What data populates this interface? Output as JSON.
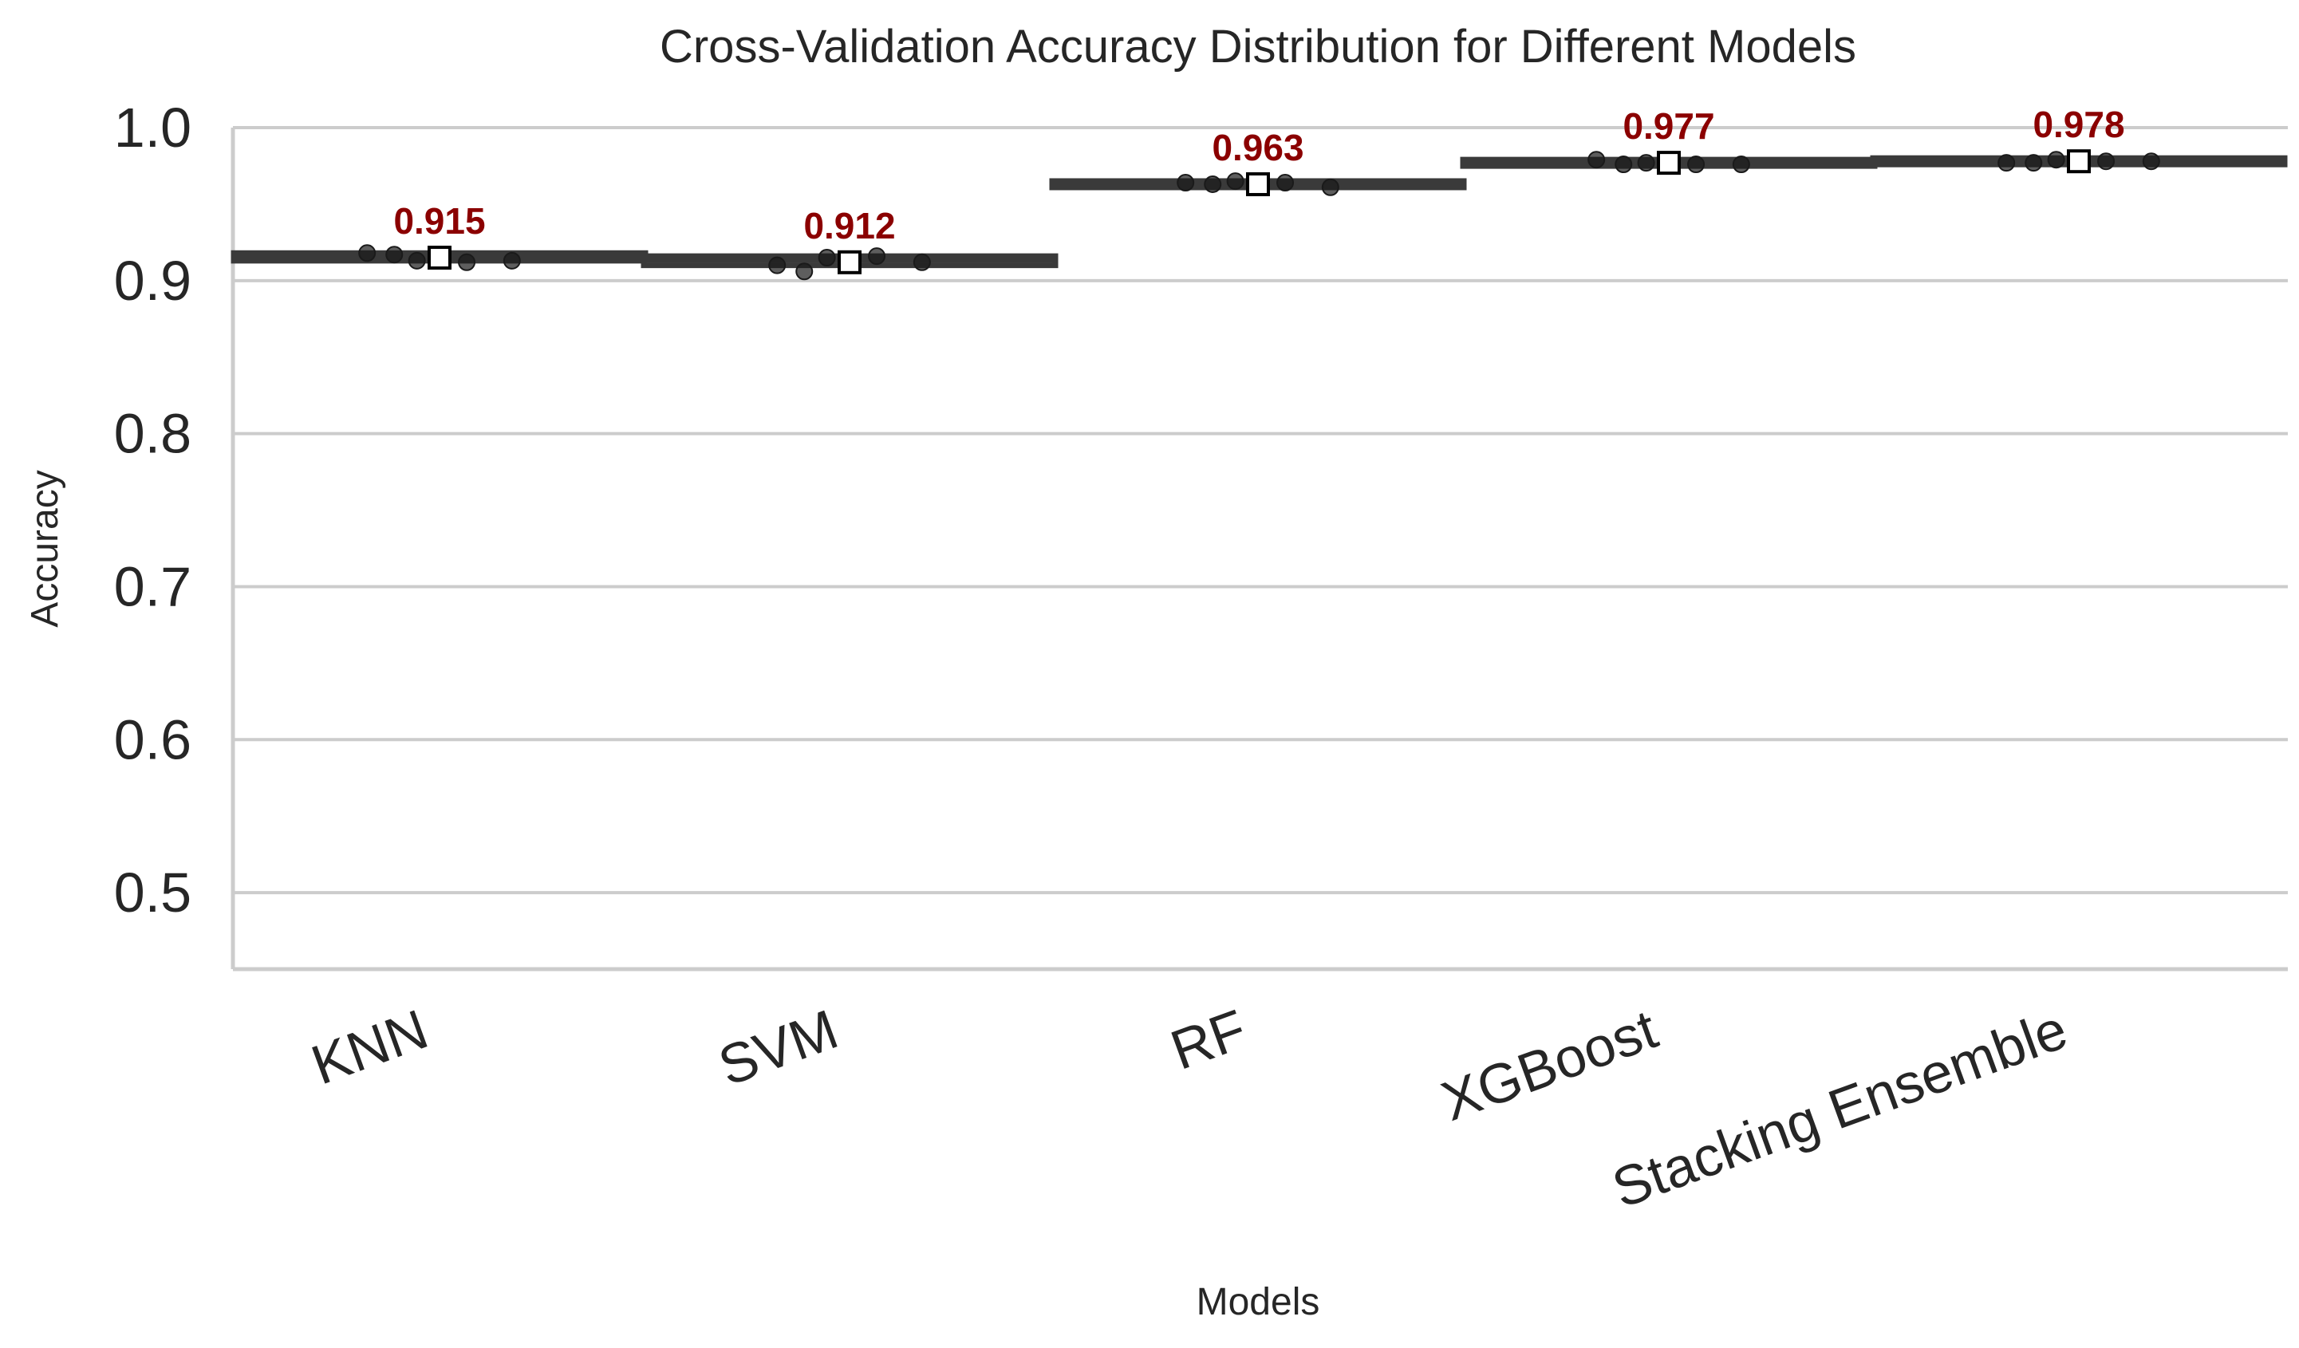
{
  "chart_data": {
    "type": "box",
    "title": "Cross-Validation Accuracy Distribution for Different Models",
    "xlabel": "Models",
    "ylabel": "Accuracy",
    "ylim": [
      0.45,
      1.0
    ],
    "yticks": [
      0.5,
      0.6,
      0.7,
      0.8,
      0.9,
      1.0
    ],
    "ytick_labels": [
      "0.5",
      "0.6",
      "0.7",
      "0.8",
      "0.9",
      "1.0"
    ],
    "grid": "horizontal",
    "categories": [
      "KNN",
      "SVM",
      "RF",
      "XGBoost",
      "Stacking Ensemble"
    ],
    "means": [
      0.915,
      0.912,
      0.963,
      0.977,
      0.978
    ],
    "mean_labels": [
      "0.915",
      "0.912",
      "0.963",
      "0.977",
      "0.978"
    ],
    "boxes": [
      {
        "q1": 0.913,
        "median": 0.916,
        "q3": 0.918,
        "whisker_low": 0.912,
        "whisker_high": 0.918
      },
      {
        "q1": 0.91,
        "median": 0.913,
        "q3": 0.916,
        "whisker_low": 0.906,
        "whisker_high": 0.916
      },
      {
        "q1": 0.961,
        "median": 0.963,
        "q3": 0.965,
        "whisker_low": 0.96,
        "whisker_high": 0.965
      },
      {
        "q1": 0.976,
        "median": 0.977,
        "q3": 0.978,
        "whisker_low": 0.976,
        "whisker_high": 0.979
      },
      {
        "q1": 0.977,
        "median": 0.978,
        "q3": 0.979,
        "whisker_low": 0.977,
        "whisker_high": 0.979
      }
    ],
    "points": [
      [
        0.918,
        0.917,
        0.913,
        0.912,
        0.913
      ],
      [
        0.91,
        0.906,
        0.915,
        0.916,
        0.912
      ],
      [
        0.964,
        0.963,
        0.965,
        0.964,
        0.961
      ],
      [
        0.979,
        0.976,
        0.977,
        0.976,
        0.976
      ],
      [
        0.977,
        0.977,
        0.979,
        0.978,
        0.978
      ]
    ],
    "colors": {
      "box_fill": "#d4a5b6",
      "box_edge": "#3a3a3a",
      "point": "#1a1a1a",
      "mean_marker_fill": "#ffffff",
      "mean_marker_edge": "#000000",
      "mean_label": "#8b0000",
      "grid": "#cccccc",
      "axis": "#cccccc"
    }
  }
}
